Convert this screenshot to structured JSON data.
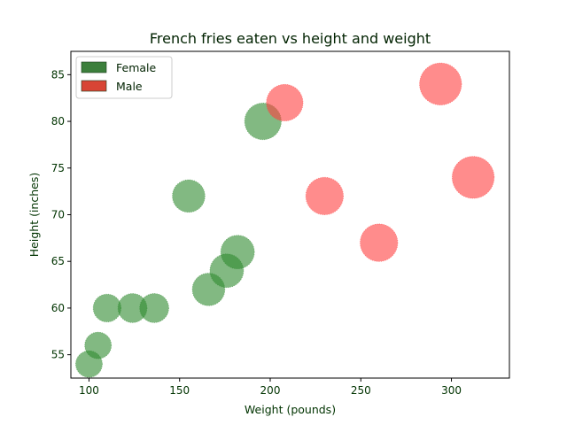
{
  "chart_data": {
    "type": "scatter",
    "title": "French fries eaten vs height and weight",
    "xlabel": "Weight (pounds)",
    "ylabel": "Height (inches)",
    "xlim": [
      90,
      332
    ],
    "ylim": [
      52.5,
      87.5
    ],
    "xticks": [
      100,
      150,
      200,
      250,
      300
    ],
    "yticks": [
      55,
      60,
      65,
      70,
      75,
      80,
      85
    ],
    "grid": false,
    "legend_position": "top-left",
    "series": [
      {
        "name": "Female",
        "color": "#2e8b2e",
        "legend_color": "#3c7f3c",
        "points": [
          {
            "x": 100,
            "y": 54,
            "size": 1.0
          },
          {
            "x": 105,
            "y": 56,
            "size": 1.0
          },
          {
            "x": 110,
            "y": 60,
            "size": 1.1
          },
          {
            "x": 124,
            "y": 60,
            "size": 1.2
          },
          {
            "x": 136,
            "y": 60,
            "size": 1.2
          },
          {
            "x": 155,
            "y": 72,
            "size": 1.5
          },
          {
            "x": 166,
            "y": 62,
            "size": 1.5
          },
          {
            "x": 176,
            "y": 64,
            "size": 1.6
          },
          {
            "x": 182,
            "y": 66,
            "size": 1.6
          },
          {
            "x": 196,
            "y": 80,
            "size": 1.9
          }
        ]
      },
      {
        "name": "Male",
        "color": "#ff4040",
        "legend_color": "#d84535",
        "points": [
          {
            "x": 208,
            "y": 82,
            "size": 1.9
          },
          {
            "x": 230,
            "y": 72,
            "size": 2.0
          },
          {
            "x": 260,
            "y": 67,
            "size": 2.0
          },
          {
            "x": 294,
            "y": 84,
            "size": 2.5
          },
          {
            "x": 312,
            "y": 74,
            "size": 2.5
          }
        ]
      }
    ]
  }
}
